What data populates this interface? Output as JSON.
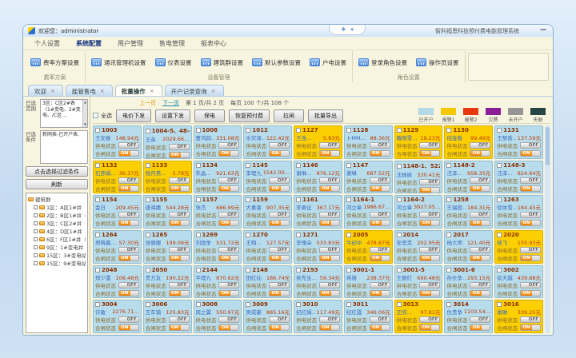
{
  "window": {
    "welcome": "欢迎您：administrator",
    "app_title": "智利福恩科技预付费电能管理系统",
    "ctrl_glyph1": "❖",
    "ctrl_glyph2": "▾",
    "minimize_glyph": "—",
    "doc_close": "×"
  },
  "menu_tabs": [
    {
      "label": "个人设置"
    },
    {
      "label": "系统配置",
      "active": true
    },
    {
      "label": "用户管理"
    },
    {
      "label": "售电管理"
    },
    {
      "label": "报表中心"
    }
  ],
  "ribbon": {
    "groups": [
      {
        "caption": "费率方案",
        "buttons": [
          {
            "label": "费率方案设置"
          }
        ]
      },
      {
        "caption": "设备管理",
        "buttons": [
          {
            "label": "通讯管理机设置"
          },
          {
            "label": "仪表设置"
          },
          {
            "label": "建筑群设置"
          },
          {
            "label": "默认参数设置"
          },
          {
            "label": "户电设置"
          }
        ]
      },
      {
        "caption": "角色设置",
        "buttons": [
          {
            "label": "登录角色设置"
          },
          {
            "label": "操作员设置"
          }
        ]
      }
    ]
  },
  "doc_tabs": [
    {
      "label": "欢迎"
    },
    {
      "label": "能管售电"
    },
    {
      "label": "批量操作",
      "active": true
    },
    {
      "label": "开户记录查询"
    }
  ],
  "sidebar": {
    "range_label": "已选范围",
    "range_text": "3区：C区2#表（1#变电、2#变电、/C区…",
    "cond_label": "已选条件",
    "cond_text": "新网表-已开户表.",
    "filter_button": "点击选择过滤条件",
    "refresh_button": "刷新",
    "tree_root": "建筑群",
    "tree_items": [
      {
        "label": "1区：A区1#井"
      },
      {
        "label": "2区：B区1#井（1#变…"
      },
      {
        "label": "3区：C区2#井（1#变电…"
      },
      {
        "label": "4区：D区1#井（D区1…"
      },
      {
        "label": "6区：F区1#井（F区1#…"
      },
      {
        "label": "9区：1#变电井（4#楼…"
      },
      {
        "label": "15区：3#变电站（3#变电…"
      },
      {
        "label": "15区：9#变电站（2#变…"
      }
    ]
  },
  "main": {
    "pagination": {
      "prev": "上一页",
      "next": "下一页",
      "page_info": "第 1 页/共 2 页",
      "per_page_info": "每页 100 个/共 108 个"
    },
    "select_all": "全选",
    "toolbar_buttons": [
      {
        "label": "电价下发"
      },
      {
        "label": "设置下发"
      },
      {
        "label": "保电"
      },
      {
        "label": "恢复预付费"
      },
      {
        "label": "拉闸"
      },
      {
        "label": "批量导出"
      }
    ],
    "legend": [
      {
        "label": "已开户",
        "color": "#b5d9e6"
      },
      {
        "label": "报警1",
        "color": "#f6c800"
      },
      {
        "label": "报警2",
        "color": "#e8390e"
      },
      {
        "label": "欠费",
        "color": "#8b1d96"
      },
      {
        "label": "未开户",
        "color": "#959595"
      },
      {
        "label": "失联",
        "color": "#254545"
      }
    ],
    "card_labels": {
      "supply": "供电状态",
      "gate": "合闸状态",
      "off": "OFF",
      "on": "ON"
    },
    "cards": [
      {
        "title": "1003",
        "name": "王安春",
        "balance": "148.94元",
        "state": "open"
      },
      {
        "title": "1004-5、48—",
        "name": "王英",
        "balance": "2029.66…",
        "state": "open"
      },
      {
        "title": "1008",
        "name": "曹鸿韵…",
        "balance": "331.08元",
        "state": "open"
      },
      {
        "title": "1012",
        "name": "水实保…",
        "balance": "122.42元",
        "state": "open"
      },
      {
        "title": "1127",
        "name": "王连…",
        "balance": "5.83元",
        "state": "alarm"
      },
      {
        "title": "1128",
        "name": "卜MM…",
        "balance": "88.36元",
        "state": "open"
      },
      {
        "title": "1129",
        "name": "戴晓雪…",
        "balance": "19.23元",
        "state": "alarm"
      },
      {
        "title": "1130",
        "name": "倪金载",
        "balance": "99.49元",
        "state": "alarm"
      },
      {
        "title": "1131",
        "name": "王郁香…",
        "balance": "137.59元",
        "state": "open"
      },
      {
        "title": "1132",
        "name": "石彦娟…",
        "balance": "36.37元",
        "state": "alarm"
      },
      {
        "title": "1133",
        "name": "张月美…",
        "balance": "5.78元",
        "state": "alarm"
      },
      {
        "title": "1134",
        "name": "朱晶…",
        "balance": "921.63元",
        "state": "open"
      },
      {
        "title": "1145",
        "name": "李理九…",
        "balance": "1542.00…",
        "state": "open"
      },
      {
        "title": "1146",
        "name": "谢琳…",
        "balance": "876.12元",
        "state": "open"
      },
      {
        "title": "1147",
        "name": "谢琳",
        "balance": "687.52元",
        "state": "open"
      },
      {
        "title": "1148-1、522",
        "name": "沈姊妹",
        "balance": "330.41元",
        "state": "open"
      },
      {
        "title": "1148-2",
        "name": "汪泽…",
        "balance": "958.35元",
        "state": "open"
      },
      {
        "title": "1148-3",
        "name": "汪泽…",
        "balance": "824.64元",
        "state": "open"
      },
      {
        "title": "1154",
        "name": "金日",
        "balance": "209.45元",
        "state": "open"
      },
      {
        "title": "1155",
        "name": "唐海庸",
        "balance": "544.28元",
        "state": "open"
      },
      {
        "title": "1157",
        "name": "张杰",
        "balance": "686.99元",
        "state": "open"
      },
      {
        "title": "1159",
        "name": "大喜睿",
        "balance": "907.35元",
        "state": "open"
      },
      {
        "title": "1161",
        "name": "李勇征",
        "balance": "367.17元",
        "state": "open"
      },
      {
        "title": "1164-1",
        "name": "河立章…",
        "balance": "1986.67…",
        "state": "open"
      },
      {
        "title": "1164-2",
        "name": "河立章",
        "balance": "3927.05…",
        "state": "open"
      },
      {
        "title": "1258",
        "name": "王福茵…",
        "balance": "184.31元",
        "state": "open"
      },
      {
        "title": "1263",
        "name": "徐体雪…",
        "balance": "184.45元",
        "state": "open"
      },
      {
        "title": "1264",
        "name": "郑晓晨…",
        "balance": "57.30元",
        "state": "open"
      },
      {
        "title": "1265",
        "name": "张丽娜",
        "balance": "199.09元",
        "state": "open"
      },
      {
        "title": "1269",
        "name": "刘国争",
        "balance": "531.72元",
        "state": "open"
      },
      {
        "title": "1270",
        "name": "王翔…",
        "balance": "127.57元",
        "state": "open"
      },
      {
        "title": "1271",
        "name": "李瑰朵",
        "balance": "533.83元",
        "state": "open"
      },
      {
        "title": "2005",
        "name": "牛纪中",
        "balance": "478.87元",
        "state": "alarm"
      },
      {
        "title": "2014",
        "name": "安思克",
        "balance": "202.95元",
        "state": "open"
      },
      {
        "title": "2017",
        "name": "杨大师",
        "balance": "121.40元",
        "state": "open"
      },
      {
        "title": "2020",
        "name": "桂飞",
        "balance": "155.93元",
        "state": "alarm"
      },
      {
        "title": "2048",
        "name": "郑少雷",
        "balance": "108.48元",
        "state": "open"
      },
      {
        "title": "2050",
        "name": "贵方友",
        "balance": "190.22元",
        "state": "open"
      },
      {
        "title": "2144",
        "name": "平理九",
        "balance": "870.62元",
        "state": "open"
      },
      {
        "title": "2148",
        "name": "田红仙",
        "balance": "186.74元",
        "state": "open"
      },
      {
        "title": "2193",
        "name": "侯先生…",
        "balance": "59.34元",
        "state": "open"
      },
      {
        "title": "3001-1",
        "name": "蒋雄",
        "balance": "238.37元",
        "state": "open"
      },
      {
        "title": "3001-5",
        "name": "王丽红",
        "balance": "690.48元",
        "state": "open"
      },
      {
        "title": "3001-6",
        "name": "孙长争…",
        "balance": "293.15元",
        "state": "open"
      },
      {
        "title": "3002",
        "name": "俞天越",
        "balance": "439.88元",
        "state": "open"
      },
      {
        "title": "3004",
        "name": "许敏",
        "balance": "2276.71…",
        "state": "open"
      },
      {
        "title": "3006",
        "name": "王车镇",
        "balance": "125.83元",
        "state": "open"
      },
      {
        "title": "3008",
        "name": "周之翼",
        "balance": "550.97元",
        "state": "open"
      },
      {
        "title": "3009",
        "name": "吴成豪",
        "balance": "885.16元",
        "state": "open"
      },
      {
        "title": "3010",
        "name": "纪红娟…",
        "balance": "117.49元",
        "state": "open"
      },
      {
        "title": "3011",
        "name": "纪红霞",
        "balance": "346.06元",
        "state": "open"
      },
      {
        "title": "3013",
        "name": "王欣…",
        "balance": "97.81元",
        "state": "alarm"
      },
      {
        "title": "3014",
        "name": "仇贵争",
        "balance": "1103.54…",
        "state": "open"
      },
      {
        "title": "3016",
        "name": "谢琳",
        "balance": "339.25元",
        "state": "alarm"
      }
    ]
  }
}
